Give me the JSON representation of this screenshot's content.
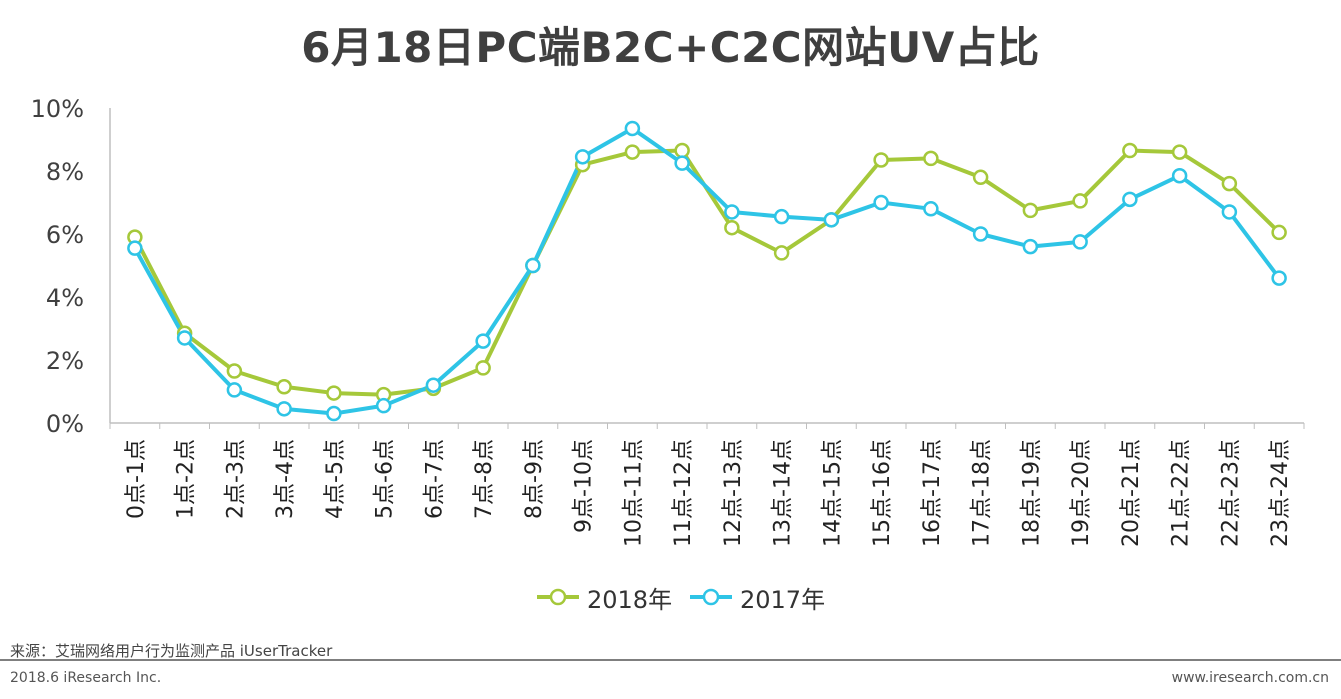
{
  "title": "6月18日PC端B2C+C2C网站UV占比",
  "source": "来源：艾瑞网络用户行为监测产品 iUserTracker",
  "footer_left": "2018.6 iResearch Inc.",
  "footer_right": "www.iresearch.com.cn",
  "colors": {
    "2018": "#a5c83a",
    "2017": "#2ec4e6",
    "axis": "#bfbfbf"
  },
  "chart_data": {
    "type": "line",
    "title": "6月18日PC端B2C+C2C网站UV占比",
    "xlabel": "",
    "ylabel": "",
    "ylim": [
      0,
      10
    ],
    "yticks": [
      "0%",
      "2%",
      "4%",
      "6%",
      "8%",
      "10%"
    ],
    "grid": false,
    "legend_position": "bottom",
    "categories": [
      "0点-1点",
      "1点-2点",
      "2点-3点",
      "3点-4点",
      "4点-5点",
      "5点-6点",
      "6点-7点",
      "7点-8点",
      "8点-9点",
      "9点-10点",
      "10点-11点",
      "11点-12点",
      "12点-13点",
      "13点-14点",
      "14点-15点",
      "15点-16点",
      "16点-17点",
      "17点-18点",
      "18点-19点",
      "19点-20点",
      "20点-21点",
      "21点-22点",
      "22点-23点",
      "23点-24点"
    ],
    "series": [
      {
        "name": "2018年",
        "values": [
          5.9,
          2.85,
          1.65,
          1.15,
          0.95,
          0.9,
          1.1,
          1.75,
          5.0,
          8.2,
          8.6,
          8.65,
          6.2,
          5.4,
          6.45,
          8.35,
          8.4,
          7.8,
          6.75,
          7.05,
          8.65,
          8.6,
          7.6,
          6.05
        ]
      },
      {
        "name": "2017年",
        "values": [
          5.55,
          2.7,
          1.05,
          0.45,
          0.3,
          0.55,
          1.2,
          2.6,
          5.0,
          8.45,
          9.35,
          8.25,
          6.7,
          6.55,
          6.45,
          7.0,
          6.8,
          6.0,
          5.6,
          5.75,
          7.1,
          7.85,
          6.7,
          4.6
        ]
      }
    ]
  }
}
